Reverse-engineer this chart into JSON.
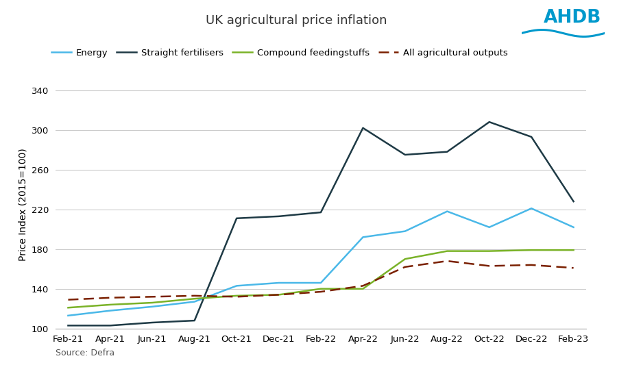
{
  "title": "UK agricultural price inflation",
  "ylabel": "Price Index (2015=100)",
  "source": "Source: Defra",
  "x_labels": [
    "Feb-21",
    "Apr-21",
    "Jun-21",
    "Aug-21",
    "Oct-21",
    "Dec-21",
    "Feb-22",
    "Apr-22",
    "Jun-22",
    "Aug-22",
    "Oct-22",
    "Dec-22",
    "Feb-23"
  ],
  "ylim": [
    100,
    350
  ],
  "yticks": [
    100,
    140,
    180,
    220,
    260,
    300,
    340
  ],
  "energy": [
    113,
    118,
    122,
    127,
    143,
    146,
    146,
    192,
    198,
    218,
    202,
    221,
    202
  ],
  "straight_fert": [
    103,
    103,
    106,
    108,
    211,
    213,
    217,
    302,
    275,
    278,
    308,
    293,
    228
  ],
  "compound_feed": [
    121,
    124,
    126,
    130,
    133,
    134,
    140,
    140,
    170,
    178,
    178,
    179,
    179
  ],
  "all_ag_outputs": [
    129,
    131,
    132,
    133,
    132,
    134,
    137,
    143,
    162,
    168,
    163,
    164,
    161
  ],
  "energy_color": "#4ab8e8",
  "straight_fert_color": "#1e3a45",
  "compound_feed_color": "#7ab228",
  "all_ag_outputs_color": "#7a2000",
  "ahdb_color": "#0099cc",
  "background_color": "#ffffff",
  "grid_color": "#cccccc",
  "title_fontsize": 13,
  "label_fontsize": 10,
  "tick_fontsize": 9.5,
  "legend_fontsize": 9.5
}
